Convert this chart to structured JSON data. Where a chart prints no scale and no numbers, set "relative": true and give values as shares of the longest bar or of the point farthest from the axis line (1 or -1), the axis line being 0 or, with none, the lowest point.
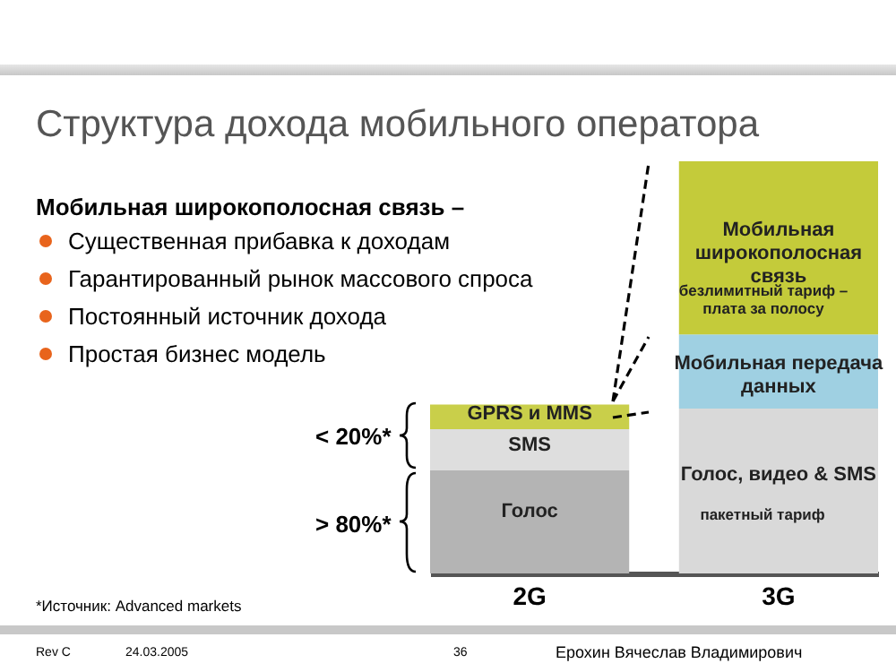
{
  "chart_data": {
    "type": "bar",
    "title": "Структура дохода мобильного оператора",
    "categories": [
      "2G",
      "3G"
    ],
    "stacked": true,
    "relative": true,
    "grid": false,
    "series": [
      {
        "name": "Голос",
        "color": "#b4b4b4",
        "values": [
          0.25,
          null
        ]
      },
      {
        "name": "SMS",
        "color": "#dedede",
        "values": [
          0.1,
          null
        ]
      },
      {
        "name": "GPRS и MMS",
        "color": "#c9cf4a",
        "values": [
          0.06,
          null
        ]
      },
      {
        "name": "Голос, видео & SMS",
        "color": "#d9d9d9",
        "values": [
          null,
          0.4
        ]
      },
      {
        "name": "Мобильная передача данных",
        "color": "#9fd0e2",
        "values": [
          null,
          0.18
        ]
      },
      {
        "name": "Мобильная широкополосная связь",
        "color": "#c4cb3a",
        "values": [
          null,
          0.42
        ]
      }
    ],
    "annotations": [
      "Мобильная широкополосная связь –",
      "Существенная прибавка к доходам",
      "Гарантированный рынок массового спроса",
      "Постоянный источник дохода",
      "Простая бизнес модель",
      "< 20%*",
      "> 80%*",
      "*Источник: Advanced markets",
      "Rev C",
      "24.03.2005",
      "36",
      "Ерохин Вячеслав Владимирович",
      "пакетный тариф",
      "безлимитный тариф – плата за полосу"
    ]
  }
}
